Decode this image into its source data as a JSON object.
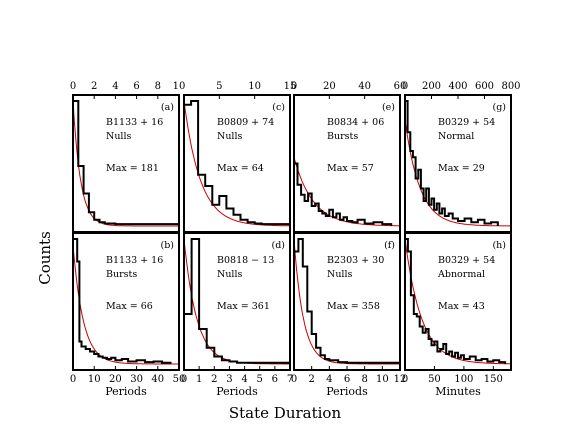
{
  "figure": {
    "ylabel": "Counts",
    "xlabel": "State Duration"
  },
  "chart_data": [
    {
      "panel": "a",
      "type": "histogram",
      "label": "(a)",
      "source": "B1133 + 16",
      "state": "Nulls",
      "max_text": "Max = 181",
      "xlim": [
        0,
        10
      ],
      "xticks": [
        0,
        2,
        4,
        6,
        8,
        10
      ],
      "xtick_position": "top",
      "xlabel": "",
      "hist_x": [
        0,
        0.5,
        1,
        1.5,
        2,
        2.5,
        3,
        4,
        5,
        10
      ],
      "hist_y": [
        1.0,
        0.48,
        0.26,
        0.11,
        0.05,
        0.03,
        0.02,
        0.015,
        0.015
      ],
      "fit_scale": 1.0,
      "color_fit": "#cc0000"
    },
    {
      "panel": "c",
      "type": "histogram",
      "label": "(c)",
      "source": "B0809 + 74",
      "state": "Nulls",
      "max_text": "Max = 64",
      "xlim": [
        0,
        15
      ],
      "xticks": [
        5,
        10,
        15
      ],
      "xtick_position": "top",
      "xlabel": "",
      "hist_x": [
        0,
        1,
        2,
        3,
        4,
        5,
        6,
        7,
        8,
        9,
        10,
        11,
        15
      ],
      "hist_y": [
        0.97,
        1.0,
        0.41,
        0.32,
        0.17,
        0.24,
        0.14,
        0.09,
        0.05,
        0.03,
        0.02,
        0.015
      ],
      "fit_scale": 1.0,
      "color_fit": "#cc0000"
    },
    {
      "panel": "e",
      "type": "histogram",
      "label": "(e)",
      "source": "B0834 + 06",
      "state": "Bursts",
      "max_text": "Max = 57",
      "xlim": [
        0,
        60
      ],
      "xticks": [
        0,
        20,
        40,
        60
      ],
      "xtick_position": "top",
      "xlabel": "",
      "hist_x": [
        0,
        2,
        4,
        6,
        8,
        10,
        12,
        14,
        16,
        18,
        20,
        22,
        24,
        26,
        28,
        30,
        33,
        36,
        40,
        45,
        50,
        55
      ],
      "hist_y": [
        0.5,
        0.33,
        0.25,
        0.2,
        0.26,
        0.16,
        0.18,
        0.12,
        0.1,
        0.08,
        0.13,
        0.07,
        0.1,
        0.05,
        0.07,
        0.04,
        0.03,
        0.05,
        0.02,
        0.03,
        0.015
      ],
      "fit_scale": 0.55,
      "color_fit": "#cc0000"
    },
    {
      "panel": "g",
      "type": "histogram",
      "label": "(g)",
      "source": "B0329 + 54",
      "state": "Normal",
      "max_text": "Max = 29",
      "xlim": [
        0,
        800
      ],
      "xticks": [
        0,
        200,
        400,
        600,
        800
      ],
      "xtick_position": "top",
      "xlabel": "",
      "hist_x": [
        0,
        20,
        40,
        60,
        80,
        100,
        120,
        140,
        160,
        180,
        200,
        220,
        240,
        260,
        280,
        300,
        330,
        360,
        400,
        450,
        500,
        550,
        600,
        650,
        700
      ],
      "hist_y": [
        1.0,
        0.75,
        0.6,
        0.55,
        0.38,
        0.45,
        0.3,
        0.2,
        0.3,
        0.17,
        0.22,
        0.13,
        0.18,
        0.1,
        0.14,
        0.08,
        0.1,
        0.06,
        0.04,
        0.06,
        0.03,
        0.05,
        0.02,
        0.03
      ],
      "fit_scale": 0.85,
      "color_fit": "#cc0000"
    },
    {
      "panel": "b",
      "type": "histogram",
      "label": "(b)",
      "source": "B1133 + 16",
      "state": "Bursts",
      "max_text": "Max = 66",
      "xlim": [
        0,
        50
      ],
      "xticks": [
        0,
        10,
        20,
        30,
        40,
        50
      ],
      "xtick_position": "bottom",
      "xlabel": "Periods",
      "hist_x": [
        0,
        2,
        3,
        4,
        6,
        8,
        10,
        12,
        14,
        16,
        18,
        20,
        23,
        26,
        30,
        34,
        38,
        42,
        46
      ],
      "hist_y": [
        1.0,
        0.82,
        0.18,
        0.14,
        0.12,
        0.1,
        0.08,
        0.06,
        0.05,
        0.04,
        0.05,
        0.03,
        0.04,
        0.02,
        0.03,
        0.015,
        0.02,
        0.01
      ],
      "fit_scale": 0.95,
      "color_fit": "#cc0000"
    },
    {
      "panel": "d",
      "type": "histogram",
      "label": "(d)",
      "source": "B0818 − 13",
      "state": "Nulls",
      "max_text": "Max = 361",
      "xlim": [
        0,
        7
      ],
      "xticks": [
        0,
        1,
        2,
        3,
        4,
        5,
        6,
        7
      ],
      "xtick_position": "bottom",
      "xlabel": "Periods",
      "hist_x": [
        0,
        0.5,
        1,
        1.5,
        2,
        2.5,
        3,
        3.5,
        4,
        7
      ],
      "hist_y": [
        0.4,
        1.0,
        0.28,
        0.13,
        0.06,
        0.03,
        0.02,
        0.01,
        0.01
      ],
      "fit_scale": 1.0,
      "color_fit": "#cc0000"
    },
    {
      "panel": "f",
      "type": "histogram",
      "label": "(f)",
      "source": "B2303 + 30",
      "state": "Nulls",
      "max_text": "Max = 358",
      "xlim": [
        0,
        12
      ],
      "xticks": [
        0,
        2,
        4,
        6,
        8,
        10,
        12
      ],
      "xtick_position": "bottom",
      "xlabel": "Periods",
      "hist_x": [
        0,
        0.5,
        1,
        1.5,
        2,
        2.5,
        3,
        3.5,
        4,
        5,
        6,
        12
      ],
      "hist_y": [
        0.9,
        1.0,
        0.78,
        0.42,
        0.24,
        0.13,
        0.07,
        0.04,
        0.03,
        0.015,
        0.01
      ],
      "fit_scale": 1.0,
      "color_fit": "#cc0000"
    },
    {
      "panel": "h",
      "type": "histogram",
      "label": "(h)",
      "source": "B0329 + 54",
      "state": "Abnormal",
      "max_text": "Max = 43",
      "xlim": [
        0,
        180
      ],
      "xticks": [
        0,
        50,
        100,
        150
      ],
      "xtick_position": "bottom",
      "xlabel": "Minutes",
      "hist_x": [
        0,
        5,
        10,
        15,
        20,
        25,
        30,
        35,
        40,
        45,
        50,
        55,
        60,
        65,
        70,
        75,
        80,
        85,
        90,
        95,
        100,
        110,
        120,
        130,
        140,
        150,
        160,
        170
      ],
      "hist_y": [
        1.0,
        0.9,
        0.55,
        0.4,
        0.38,
        0.3,
        0.25,
        0.28,
        0.2,
        0.15,
        0.18,
        0.1,
        0.12,
        0.16,
        0.08,
        0.1,
        0.06,
        0.09,
        0.05,
        0.07,
        0.04,
        0.06,
        0.03,
        0.04,
        0.02,
        0.03,
        0.015
      ],
      "fit_scale": 1.0,
      "color_fit": "#cc0000"
    }
  ]
}
